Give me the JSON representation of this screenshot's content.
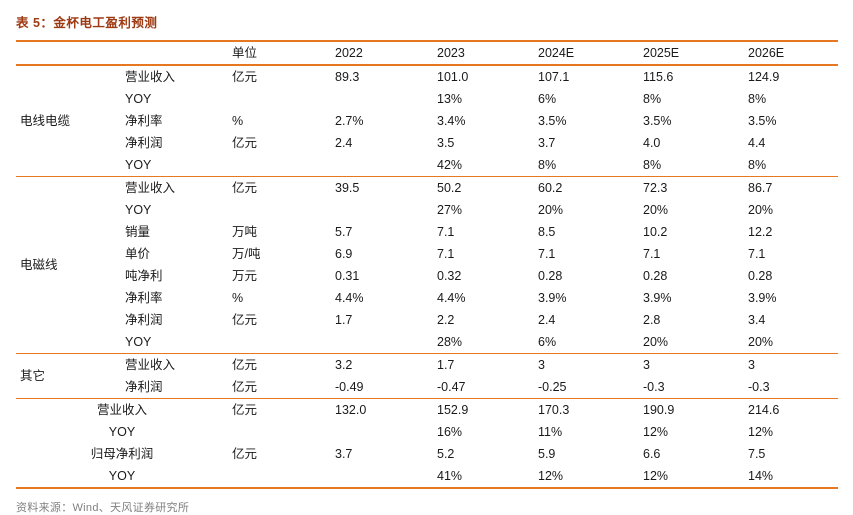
{
  "title": "表 5：金杯电工盈利预测",
  "source": "资料来源：Wind、天风证券研究所",
  "colors": {
    "accent": "#E87722",
    "title": "#9E3A12"
  },
  "table": {
    "headers": [
      "",
      "",
      "单位",
      "2022",
      "2023",
      "2024E",
      "2025E",
      "2026E"
    ],
    "sections": [
      {
        "group": "电线电缆",
        "rows": [
          {
            "label": "营业收入",
            "unit": "亿元",
            "values": [
              "89.3",
              "101.0",
              "107.1",
              "115.6",
              "124.9"
            ]
          },
          {
            "label": "YOY",
            "unit": "",
            "values": [
              "",
              "13%",
              "6%",
              "8%",
              "8%"
            ]
          },
          {
            "label": "净利率",
            "unit": "%",
            "values": [
              "2.7%",
              "3.4%",
              "3.5%",
              "3.5%",
              "3.5%"
            ]
          },
          {
            "label": "净利润",
            "unit": "亿元",
            "values": [
              "2.4",
              "3.5",
              "3.7",
              "4.0",
              "4.4"
            ]
          },
          {
            "label": "YOY",
            "unit": "",
            "values": [
              "",
              "42%",
              "8%",
              "8%",
              "8%"
            ]
          }
        ]
      },
      {
        "group": "电磁线",
        "rows": [
          {
            "label": "营业收入",
            "unit": "亿元",
            "values": [
              "39.5",
              "50.2",
              "60.2",
              "72.3",
              "86.7"
            ]
          },
          {
            "label": "YOY",
            "unit": "",
            "values": [
              "",
              "27%",
              "20%",
              "20%",
              "20%"
            ]
          },
          {
            "label": "销量",
            "unit": "万吨",
            "values": [
              "5.7",
              "7.1",
              "8.5",
              "10.2",
              "12.2"
            ]
          },
          {
            "label": "单价",
            "unit": "万/吨",
            "values": [
              "6.9",
              "7.1",
              "7.1",
              "7.1",
              "7.1"
            ]
          },
          {
            "label": "吨净利",
            "unit": "万元",
            "values": [
              "0.31",
              "0.32",
              "0.28",
              "0.28",
              "0.28"
            ]
          },
          {
            "label": "净利率",
            "unit": "%",
            "values": [
              "4.4%",
              "4.4%",
              "3.9%",
              "3.9%",
              "3.9%"
            ]
          },
          {
            "label": "净利润",
            "unit": "亿元",
            "values": [
              "1.7",
              "2.2",
              "2.4",
              "2.8",
              "3.4"
            ]
          },
          {
            "label": "YOY",
            "unit": "",
            "values": [
              "",
              "28%",
              "6%",
              "20%",
              "20%"
            ]
          }
        ]
      },
      {
        "group": "其它",
        "rows": [
          {
            "label": "营业收入",
            "unit": "亿元",
            "values": [
              "3.2",
              "1.7",
              "3",
              "3",
              "3"
            ]
          },
          {
            "label": "净利润",
            "unit": "亿元",
            "values": [
              "-0.49",
              "-0.47",
              "-0.25",
              "-0.3",
              "-0.3"
            ]
          }
        ]
      },
      {
        "group": "",
        "rows": [
          {
            "label": "营业收入",
            "unit": "亿元",
            "values": [
              "132.0",
              "152.9",
              "170.3",
              "190.9",
              "214.6"
            ]
          },
          {
            "label": "YOY",
            "unit": "",
            "values": [
              "",
              "16%",
              "11%",
              "12%",
              "12%"
            ]
          },
          {
            "label": "归母净利润",
            "unit": "亿元",
            "values": [
              "3.7",
              "5.2",
              "5.9",
              "6.6",
              "7.5"
            ]
          },
          {
            "label": "YOY",
            "unit": "",
            "values": [
              "",
              "41%",
              "12%",
              "12%",
              "14%"
            ]
          }
        ]
      }
    ]
  }
}
